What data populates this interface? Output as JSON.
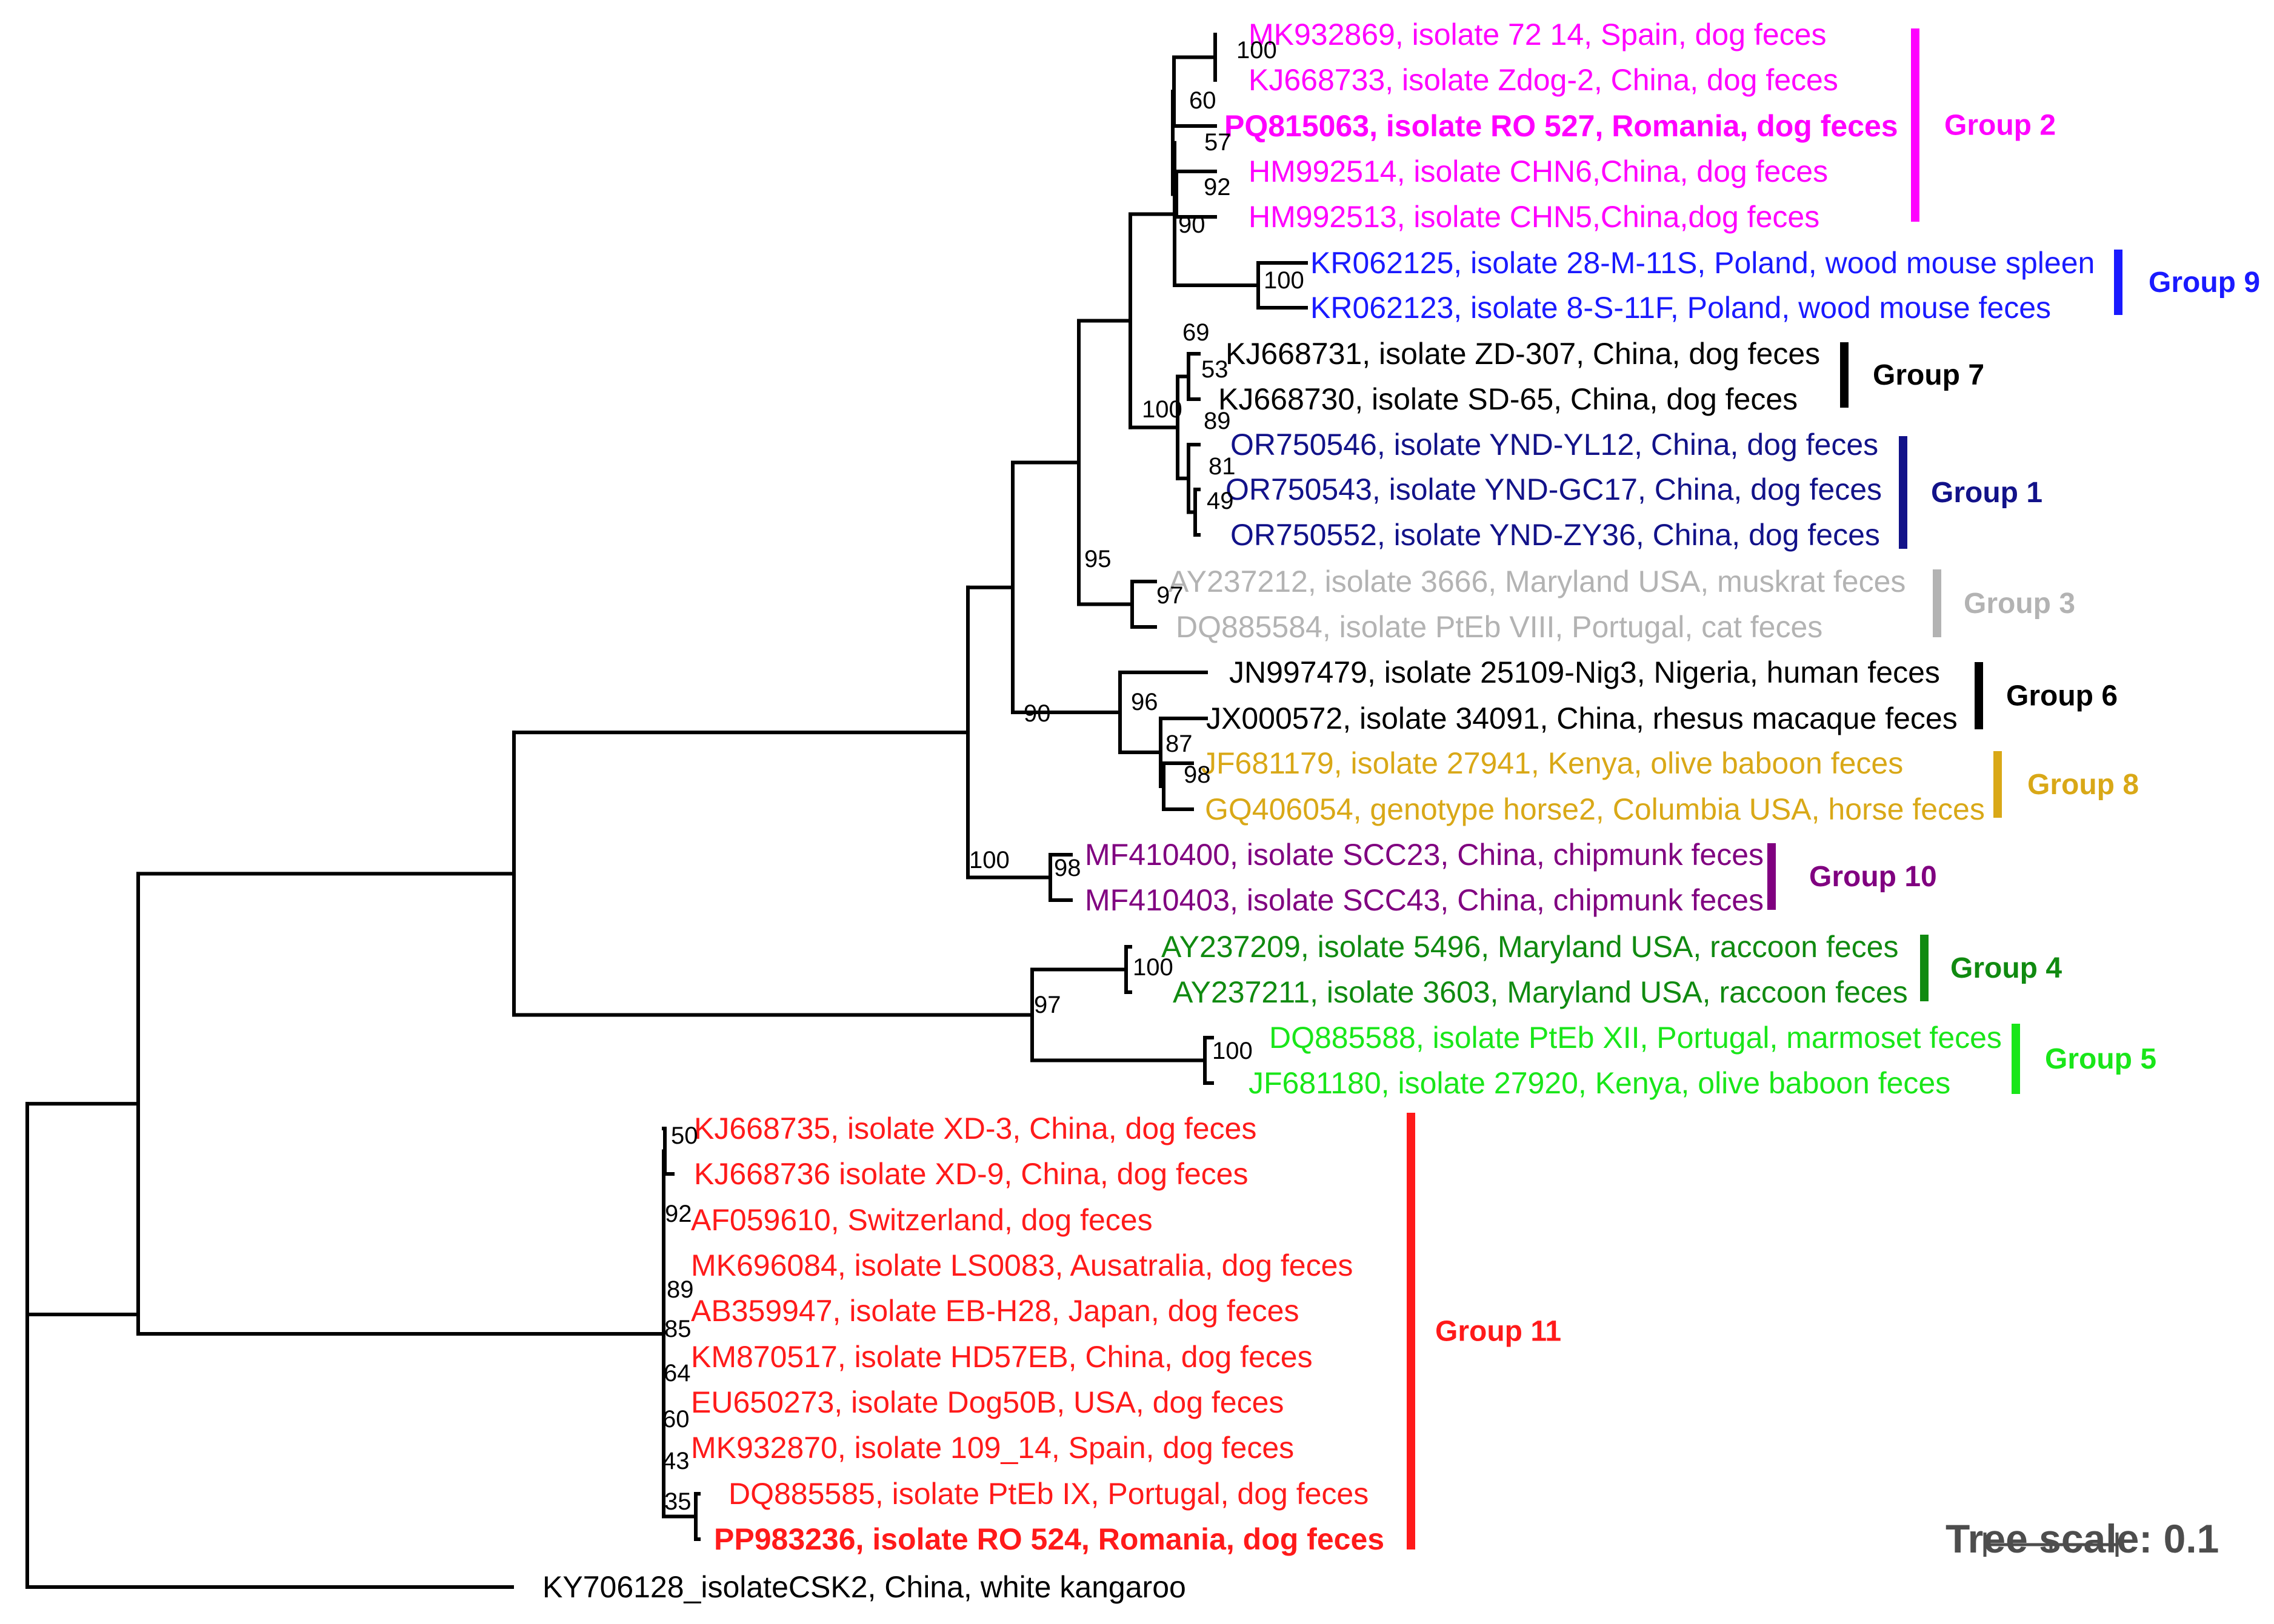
{
  "groups": [
    {
      "name": "Group 2",
      "color": "#ff00ff"
    },
    {
      "name": "Group 9",
      "color": "#1a1aff"
    },
    {
      "name": "Group 7",
      "color": "#000000"
    },
    {
      "name": "Group 1",
      "color": "#121289"
    },
    {
      "name": "Group 3",
      "color": "#b3b3b3"
    },
    {
      "name": "Group 6",
      "color": "#000000"
    },
    {
      "name": "Group 8",
      "color": "#d9a817"
    },
    {
      "name": "Group 10",
      "color": "#800080"
    },
    {
      "name": "Group 4",
      "color": "#108a10"
    },
    {
      "name": "Group 5",
      "color": "#19e619"
    },
    {
      "name": "Group 11",
      "color": "#ff1a1a"
    }
  ],
  "leaves": [
    {
      "label": "MK932869, isolate 72 14, Spain, dog feces",
      "group": 0
    },
    {
      "label": "KJ668733, isolate Zdog-2, China, dog feces",
      "group": 0
    },
    {
      "label": "PQ815063, isolate RO 527, Romania, dog feces",
      "group": 0,
      "bold": true
    },
    {
      "label": "HM992514, isolate CHN6,China, dog feces",
      "group": 0
    },
    {
      "label": "HM992513, isolate CHN5,China,dog feces",
      "group": 0
    },
    {
      "label": "KR062125, isolate 28-M-11S, Poland, wood mouse spleen",
      "group": 1
    },
    {
      "label": "KR062123, isolate 8-S-11F, Poland, wood mouse feces",
      "group": 1
    },
    {
      "label": "KJ668731, isolate ZD-307, China, dog feces",
      "group": 2
    },
    {
      "label": "KJ668730, isolate SD-65, China, dog feces",
      "group": 2
    },
    {
      "label": "OR750546, isolate YND-YL12, China, dog feces",
      "group": 3
    },
    {
      "label": "OR750543, isolate YND-GC17, China, dog feces",
      "group": 3
    },
    {
      "label": "OR750552, isolate YND-ZY36, China, dog feces",
      "group": 3
    },
    {
      "label": "AY237212, isolate 3666, Maryland USA, muskrat feces",
      "group": 4
    },
    {
      "label": "DQ885584, isolate PtEb VIII, Portugal, cat feces",
      "group": 4
    },
    {
      "label": "JN997479, isolate 25109-Nig3, Nigeria, human feces",
      "group": 5
    },
    {
      "label": "JX000572, isolate 34091, China, rhesus macaque feces",
      "group": 5
    },
    {
      "label": "JF681179, isolate 27941, Kenya, olive baboon feces",
      "group": 6
    },
    {
      "label": "GQ406054, genotype horse2, Columbia USA, horse feces",
      "group": 6
    },
    {
      "label": "MF410400, isolate SCC23, China, chipmunk feces",
      "group": 7
    },
    {
      "label": "MF410403, isolate SCC43, China, chipmunk feces",
      "group": 7
    },
    {
      "label": "AY237209, isolate 5496, Maryland USA, raccoon feces",
      "group": 8
    },
    {
      "label": "AY237211, isolate 3603, Maryland USA, raccoon feces",
      "group": 8
    },
    {
      "label": "DQ885588, isolate PtEb XII, Portugal, marmoset feces",
      "group": 9
    },
    {
      "label": "JF681180, isolate 27920, Kenya, olive baboon feces",
      "group": 9
    },
    {
      "label": "KJ668735, isolate XD-3, China, dog feces",
      "group": 10
    },
    {
      "label": "KJ668736 isolate XD-9, China, dog feces",
      "group": 10
    },
    {
      "label": "AF059610, Switzerland, dog feces",
      "group": 10
    },
    {
      "label": "MK696084, isolate LS0083, Ausatralia, dog feces",
      "group": 10
    },
    {
      "label": "AB359947, isolate EB-H28, Japan, dog feces",
      "group": 10
    },
    {
      "label": "KM870517, isolate HD57EB, China, dog feces",
      "group": 10
    },
    {
      "label": "EU650273, isolate Dog50B, USA, dog feces",
      "group": 10
    },
    {
      "label": "MK932870, isolate 109_14, Spain, dog feces",
      "group": 10
    },
    {
      "label": "DQ885585, isolate PtEb IX, Portugal, dog feces",
      "group": 10
    },
    {
      "label": "PP983236, isolate RO 524, Romania, dog feces",
      "group": 10,
      "bold": true
    },
    {
      "label": "KY706128_isolateCSK2, China, white kangaroo",
      "group": null
    }
  ],
  "bootstrap_values": [
    "100",
    "60",
    "57",
    "92",
    "90",
    "100",
    "69",
    "53",
    "100",
    "89",
    "81",
    "49",
    "95",
    "97",
    "90",
    "96",
    "87",
    "98",
    "100",
    "98",
    "97",
    "100",
    "100",
    "50",
    "92",
    "89",
    "85",
    "64",
    "60",
    "43",
    "35"
  ],
  "scale_bar": {
    "label": "Tree scale: 0.1",
    "branch_length": 0.1
  }
}
